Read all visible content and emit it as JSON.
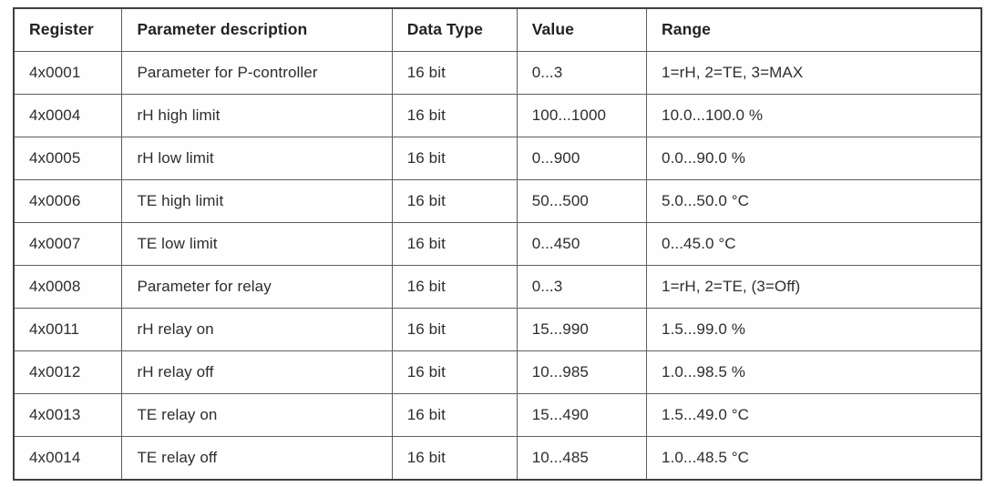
{
  "table": {
    "headers": {
      "register": "Register",
      "description": "Parameter description",
      "data_type": "Data Type",
      "value": "Value",
      "range": "Range"
    },
    "rows": [
      {
        "register": "4x0001",
        "description": "Parameter for P-controller",
        "data_type": "16 bit",
        "value": "0...3",
        "range": "1=rH, 2=TE, 3=MAX"
      },
      {
        "register": "4x0004",
        "description": "rH high limit",
        "data_type": "16 bit",
        "value": "100...1000",
        "range": "10.0...100.0 %"
      },
      {
        "register": "4x0005",
        "description": "rH low limit",
        "data_type": "16 bit",
        "value": "0...900",
        "range": "0.0...90.0 %"
      },
      {
        "register": "4x0006",
        "description": "TE high limit",
        "data_type": "16 bit",
        "value": "50...500",
        "range": "5.0...50.0 °C"
      },
      {
        "register": "4x0007",
        "description": "TE low limit",
        "data_type": "16 bit",
        "value": "0...450",
        "range": "0...45.0 °C"
      },
      {
        "register": "4x0008",
        "description": "Parameter for relay",
        "data_type": "16 bit",
        "value": "0...3",
        "range": "1=rH, 2=TE, (3=Off)"
      },
      {
        "register": "4x0011",
        "description": "rH relay on",
        "data_type": "16 bit",
        "value": "15...990",
        "range": "1.5...99.0 %"
      },
      {
        "register": "4x0012",
        "description": "rH relay off",
        "data_type": "16 bit",
        "value": "10...985",
        "range": "1.0...98.5 %"
      },
      {
        "register": "4x0013",
        "description": "TE relay on",
        "data_type": "16 bit",
        "value": "15...490",
        "range": "1.5...49.0 °C"
      },
      {
        "register": "4x0014",
        "description": "TE relay off",
        "data_type": "16 bit",
        "value": "10...485",
        "range": "1.0...48.5 °C"
      }
    ],
    "colors": {
      "outer_border": "#404040",
      "inner_border": "#5f5f5f",
      "text": "#2d2d2d",
      "background": "#fefefe"
    }
  }
}
